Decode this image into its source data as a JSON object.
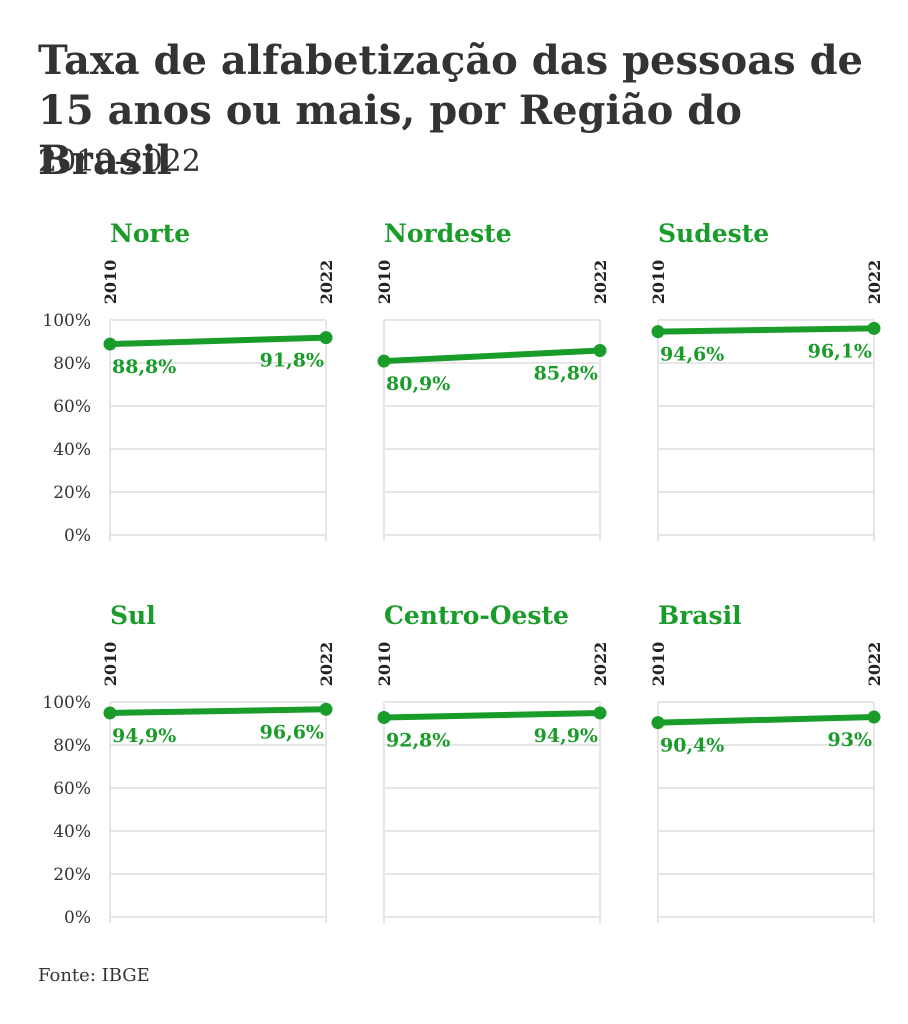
{
  "title": "Taxa de alfabetização das pessoas de 15 anos ou mais, por Região do Brasil",
  "subtitle": "2010-2022",
  "source": "Fonte: IBGE",
  "colors": {
    "series": "#1a9c2a",
    "grid": "#e6e6e6",
    "text": "#333333"
  },
  "chart_data": {
    "type": "line",
    "x": [
      "2010",
      "2022"
    ],
    "ylim": [
      0,
      100
    ],
    "yticks": [
      0,
      20,
      40,
      60,
      80,
      100
    ],
    "ytick_labels": [
      "0%",
      "20%",
      "40%",
      "60%",
      "80%",
      "100%"
    ],
    "panels": [
      {
        "name": "Norte",
        "values": [
          88.8,
          91.8
        ],
        "labels": [
          "88,8%",
          "91,8%"
        ]
      },
      {
        "name": "Nordeste",
        "values": [
          80.9,
          85.8
        ],
        "labels": [
          "80,9%",
          "85,8%"
        ]
      },
      {
        "name": "Sudeste",
        "values": [
          94.6,
          96.1
        ],
        "labels": [
          "94,6%",
          "96,1%"
        ]
      },
      {
        "name": "Sul",
        "values": [
          94.9,
          96.6
        ],
        "labels": [
          "94,9%",
          "96,6%"
        ]
      },
      {
        "name": "Centro-Oeste",
        "values": [
          92.8,
          94.9
        ],
        "labels": [
          "92,8%",
          "94,9%"
        ]
      },
      {
        "name": "Brasil",
        "values": [
          90.4,
          93.0
        ],
        "labels": [
          "90,4%",
          "93%"
        ]
      }
    ]
  }
}
